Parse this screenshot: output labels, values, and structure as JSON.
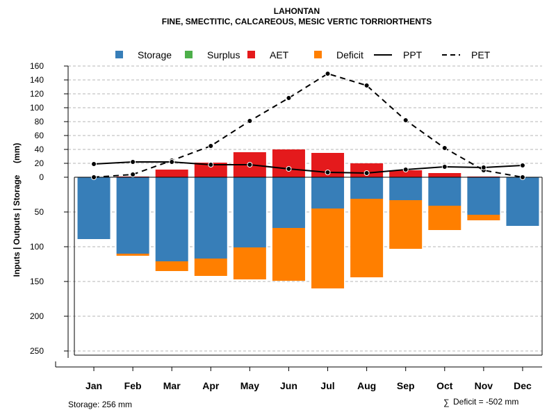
{
  "chart_data": {
    "type": "bar",
    "title": "LAHONTAN",
    "subtitle": "FINE, SMECTITIC, CALCAREOUS, MESIC VERTIC TORRIORTHENTS",
    "ylabel": "Inputs | Outputs | Storage     (mm)",
    "categories": [
      "Jan",
      "Feb",
      "Mar",
      "Apr",
      "May",
      "Jun",
      "Jul",
      "Aug",
      "Sep",
      "Oct",
      "Nov",
      "Dec"
    ],
    "legend": [
      {
        "name": "Storage",
        "kind": "box",
        "color": "#377EB8"
      },
      {
        "name": "Surplus",
        "kind": "box",
        "color": "#4DAF4A"
      },
      {
        "name": "AET",
        "kind": "box",
        "color": "#E41A1C"
      },
      {
        "name": "Deficit",
        "kind": "box",
        "color": "#FF7F00"
      },
      {
        "name": "PPT",
        "kind": "solid",
        "color": "#000000"
      },
      {
        "name": "PET",
        "kind": "dashed",
        "color": "#000000"
      }
    ],
    "series": [
      {
        "name": "AET",
        "color": "#E41A1C",
        "values": [
          0,
          1,
          11,
          21,
          36,
          40,
          35,
          20,
          10,
          6,
          1,
          0
        ]
      },
      {
        "name": "Storage",
        "color": "#377EB8",
        "values": [
          89,
          110,
          121,
          117,
          101,
          73,
          45,
          31,
          33,
          41,
          54,
          70
        ]
      },
      {
        "name": "Deficit",
        "color": "#FF7F00",
        "values": [
          0,
          3,
          14,
          25,
          46,
          76,
          115,
          113,
          70,
          35,
          8,
          0
        ]
      },
      {
        "name": "PPT",
        "color": "#000000",
        "values": [
          19,
          22,
          22,
          18,
          18,
          12,
          7,
          6,
          11,
          15,
          14,
          17
        ]
      },
      {
        "name": "PET",
        "color": "#000000",
        "values": [
          0,
          4,
          24,
          45,
          81,
          114,
          149,
          132,
          82,
          42,
          10,
          0
        ]
      }
    ],
    "upper_axis": {
      "ticks": [
        "0",
        "20",
        "40",
        "60",
        "80",
        "100",
        "120",
        "140",
        "160"
      ],
      "ylim": [
        0,
        160
      ]
    },
    "lower_axis": {
      "ticks": [
        "50",
        "100",
        "150",
        "200",
        "250"
      ],
      "ylim": [
        0,
        256
      ]
    },
    "grid": true,
    "legend_position": "top"
  },
  "footer": {
    "storage": "Storage: 256 mm",
    "deficit_symbol": "∑",
    "deficit": "Deficit = -502 mm"
  }
}
